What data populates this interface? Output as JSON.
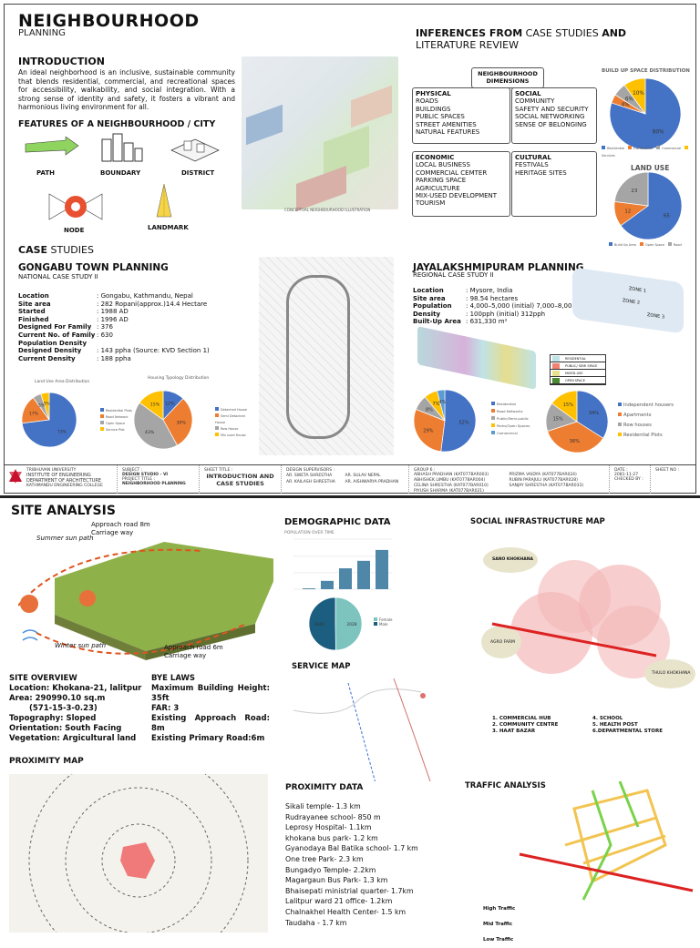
{
  "header": {
    "title": "NEIGHBOURHOOD",
    "subtitle": "PLANNING"
  },
  "intro": {
    "heading": "INTRODUCTION",
    "text": "An ideal neighborhood is an inclusive, sustainable community that blends residential, commercial, and recreational spaces for accessibility, walkability, and social integration. With a strong sense of identity and safety, it fosters a vibrant and harmonious living environment for all."
  },
  "features": {
    "heading": "FEATURES OF A NEIGHBOURHOOD / CITY",
    "items": [
      "PATH",
      "BOUNDARY",
      "DISTRICT",
      "NODE",
      "LANDMARK"
    ]
  },
  "illustration_caption": "CONCEPTUAL NEIGHBOURHOOD ILLUSTRATION",
  "inferences": {
    "heading_bold1": "INFERENCES FROM",
    "heading_light": "CASE STUDIES",
    "heading_bold2": "AND",
    "heading_line2": "LITERATURE REVIEW",
    "dimensions_title": "NEIGHBOURHOOD DIMENSIONS",
    "physical": {
      "title": "PHYSICAL",
      "items": [
        "ROADS",
        "BUILDINGS",
        "PUBLIC SPACES",
        "STREET AMENITIES",
        "NATURAL FEATURES"
      ]
    },
    "social": {
      "title": "SOCIAL",
      "items": [
        "COMMUNITY",
        "SAFETY AND SECURITY",
        "SOCIAL NETWORKING",
        "SENSE OF BELONGING"
      ]
    },
    "economic": {
      "title": "ECONOMIC",
      "items": [
        "LOCAL BUSINESS",
        "COMMERCIAL CEMTER",
        "PARKING SPACE",
        "AGRICULTURE",
        "MIX-USED DEVELOPMENT",
        "TOURISM"
      ]
    },
    "cultural": {
      "title": "CULTURAL",
      "items": [
        "FESTIVALS",
        "HERITAGE SITES"
      ]
    }
  },
  "case_studies": {
    "heading_bold": "CASE",
    "heading_light": "STUDIES"
  },
  "gongabu": {
    "title": "GONGABU TOWN PLANNING",
    "subtitle": "NATIONAL CASE STUDY II",
    "facts": [
      [
        "Location",
        ": Gongabu, Kathmandu, Nepal"
      ],
      [
        "Site area",
        ": 282 Ropani(approx.)14.4 Hectare"
      ],
      [
        "Started",
        ": 1988 AD"
      ],
      [
        "Finished",
        ": 1996 AD"
      ],
      [
        "Designed For Family",
        ": 376"
      ],
      [
        "Current No. of Family",
        ": 630"
      ],
      [
        "Population Density",
        ""
      ],
      [
        "Designed Density",
        ": 143 ppha (Source: KVD Section 1)"
      ],
      [
        "Current Density",
        ": 188 ppha"
      ]
    ]
  },
  "jaya": {
    "title": "JAYALAKSHMIPURAM PLANNING",
    "subtitle": "REGIONAL CASE STUDY II",
    "facts": [
      [
        "Location",
        ": Mysore, India"
      ],
      [
        "Site area",
        ": 98.54 hectares"
      ],
      [
        "Population",
        ": 4,000–5,000 (initial)  7,000–8,000"
      ],
      [
        "Density",
        ": 100pph (initial) 312pph"
      ],
      [
        "Built-Up Area",
        ": 631,330 m²"
      ]
    ],
    "zones": [
      "ZONE 1",
      "ZONE 2",
      "ZONE 3"
    ],
    "map_legend": [
      {
        "label": "RESIDENTIAL",
        "color": "#bfe3e6"
      },
      {
        "label": "PUBLIC/ SEMI SPACE",
        "color": "#f08070"
      },
      {
        "label": "MIXED-USE",
        "color": "#e8e090"
      },
      {
        "label": "OPEN SPACE",
        "color": "#4a8a30"
      }
    ]
  },
  "chart_data": [
    {
      "type": "pie",
      "title": "BUILD UP SPACE DISTRIBUTION",
      "categories": [
        "Residential",
        "Institutional",
        "Commercial",
        "Services"
      ],
      "values": [
        80,
        4,
        6,
        10
      ],
      "labels": [
        "80%",
        "4%",
        "6%",
        "10%"
      ],
      "colors": [
        "#4472c4",
        "#ed7d31",
        "#a5a5a5",
        "#ffc000"
      ],
      "legend": "bottom"
    },
    {
      "type": "pie",
      "title": "LAND USE",
      "categories": [
        "Build Up Area",
        "Open Space",
        "Road"
      ],
      "values": [
        65,
        12,
        23
      ],
      "labels": [
        "65",
        "12",
        "23"
      ],
      "colors": [
        "#4472c4",
        "#ed7d31",
        "#a5a5a5"
      ],
      "legend": "bottom"
    },
    {
      "type": "pie",
      "title": "Land Use Area Distribution",
      "categories": [
        "Residential Plots",
        "Road Network",
        "Open Space",
        "Service Plot"
      ],
      "values": [
        73,
        17,
        5,
        5
      ],
      "labels": [
        "73%",
        "17%",
        "5%",
        "5%"
      ],
      "colors": [
        "#4472c4",
        "#ed7d31",
        "#a5a5a5",
        "#ffc000"
      ],
      "legend": "right"
    },
    {
      "type": "pie",
      "title": "Housing Typology Distribution",
      "categories": [
        "Detached House",
        "Semi Detached House",
        "Row House",
        "Mix used House"
      ],
      "values": [
        12,
        30,
        43,
        15
      ],
      "labels": [
        "12%",
        "30%",
        "43%",
        "15%"
      ],
      "colors": [
        "#4472c4",
        "#ed7d31",
        "#a5a5a5",
        "#ffc000"
      ],
      "legend": "right"
    },
    {
      "type": "pie",
      "title": "",
      "categories": [
        "Residential",
        "Road Networks",
        "Public/Semi-public",
        "Parks/Open Spaces",
        "Commercial"
      ],
      "values": [
        52,
        29,
        8,
        7,
        4
      ],
      "labels": [
        "52%",
        "29%",
        "8%",
        "7%",
        "4%"
      ],
      "colors": [
        "#4472c4",
        "#ed7d31",
        "#a5a5a5",
        "#ffc000",
        "#5b9bd5"
      ],
      "legend": "right"
    },
    {
      "type": "pie",
      "title": "",
      "categories": [
        "Independent housers",
        "Apartments",
        "Row houses",
        "Residential Plots"
      ],
      "values": [
        34,
        36,
        15,
        15
      ],
      "labels": [
        "34%",
        "36%",
        "15%",
        "15%"
      ],
      "colors": [
        "#4472c4",
        "#ed7d31",
        "#a5a5a5",
        "#ffc000"
      ],
      "legend": "right"
    },
    {
      "type": "bar",
      "title": "POPULATION OVER TIME",
      "values": [
        100,
        1000,
        2500,
        3400,
        4700
      ],
      "color": "#4f87a8"
    },
    {
      "type": "pie",
      "title": "",
      "categories": [
        "Female",
        "Male"
      ],
      "values": [
        2028,
        2046
      ],
      "labels": [
        "2028",
        "2046"
      ],
      "colors": [
        "#7cc4bd",
        "#1b5e80"
      ],
      "legend": "right"
    }
  ],
  "title_block": {
    "university": "TRIBHUVAN UNIVERSITY",
    "institute": "INSTITUTE OF ENGINEERING",
    "department": "DEPARTMENT OF ARCHITECTURE",
    "college": "KATHMANDU ENGINEERING COLLEGE",
    "subject_label": "SUBJECT :",
    "subject": "DESIGN STUDIO - VI",
    "project_label": "PROJECT TITLE :",
    "project": "NEIGHBORHOOD PLANNING",
    "sheet_title_label": "SHEET TITLE :",
    "sheet_title": "INTRODUCTION AND CASE STUDIES",
    "supervisors_label": "DESIGN SUPERVISORS :",
    "supervisors": [
      "AR. SWETA SHRESTHA",
      "AR. SULAV NEPAL",
      "AR. KAILASH SHRESTHA",
      "AR. AISHWARYA PRADHAN"
    ],
    "group_label": "GROUP 6 :",
    "members": [
      "ABHASH PRADHAN (KAT077BAR003)",
      "ABHISHEK LIMBU (KAT077BAR004)",
      "CELINA SHRESTHA (KAT077BAR010)",
      "PIYUSH SHARMA (KAT077BAR021)",
      "PRIZMA VAIDYA (KAT077BAR024)",
      "RUBIN PARAJULI (KAT077BAR028)",
      "SANJAY SHRESTHA (KAT077BAR033)"
    ],
    "date_label": "DATE :",
    "date": "2081-11-27",
    "checked_label": "CHECKED BY :",
    "sheet_no_label": "SHEET NO :"
  },
  "site": {
    "heading": "SITE ANALYSIS",
    "annotations": [
      "Approach road 8m Carriage way",
      "Summer sun path",
      "Winter sun path",
      "Approach road 6m Carriage way"
    ],
    "overview": {
      "title": "SITE OVERVIEW",
      "lines": [
        "Location: Khokana-21, lalitpur",
        "Area: 290990.10 sq.m",
        "(571-15-3-0.23)",
        "Topography: Sloped",
        "Orientation: South Facing",
        "Vegetation: Argicultural land"
      ]
    },
    "bye_laws": {
      "title": "BYE LAWS",
      "lines": [
        "Maximum Building Height: 35ft",
        "FAR: 3",
        "Existing Approach Road: 8m",
        "Existing Primary Road:6m"
      ]
    }
  },
  "proximity_map": {
    "heading": "PROXIMITY MAP"
  },
  "demographic": {
    "heading": "DEMOGRAPHIC DATA"
  },
  "service_map": {
    "heading": "SERVICE MAP"
  },
  "proximity_data": {
    "heading": "PROXIMITY DATA",
    "items": [
      "Sikali temple- 1.3 km",
      "Rudrayanee school- 850 m",
      "Leprosy Hospital- 1.1km",
      "khokana bus park- 1.2 km",
      "Gyanodaya Bal Batika school- 1.7 km",
      "One tree Park- 2.3 km",
      "Bungadyo Temple- 2.2km",
      "Magargaun Bus Park- 1.3 km",
      "Bhaisepati ministrial quarter- 1.7km",
      "Lalitpur ward 21 office- 1.2km",
      "Chalnakhel Health Center- 1.5 km",
      "Taudaha - 1.7 km"
    ]
  },
  "social_infra": {
    "heading": "SOCIAL INFRASTRUCTURE MAP",
    "places": [
      "SANO KHOKHANA",
      "AGRO FARM",
      "THULO KHOKHANA"
    ],
    "legend": [
      "1. COMMERCIAL HUB",
      "2. COMMUNITY CENTRE",
      "3. HAAT BAZAR",
      "4. SCHOOL",
      "5. HEALTH POST",
      "6.DEPARTMENTAL STORE"
    ]
  },
  "traffic": {
    "heading": "TRAFFIC ANALYSIS",
    "legend": [
      "High Traffic",
      "Mid Traffic",
      "Low Traffic"
    ]
  }
}
